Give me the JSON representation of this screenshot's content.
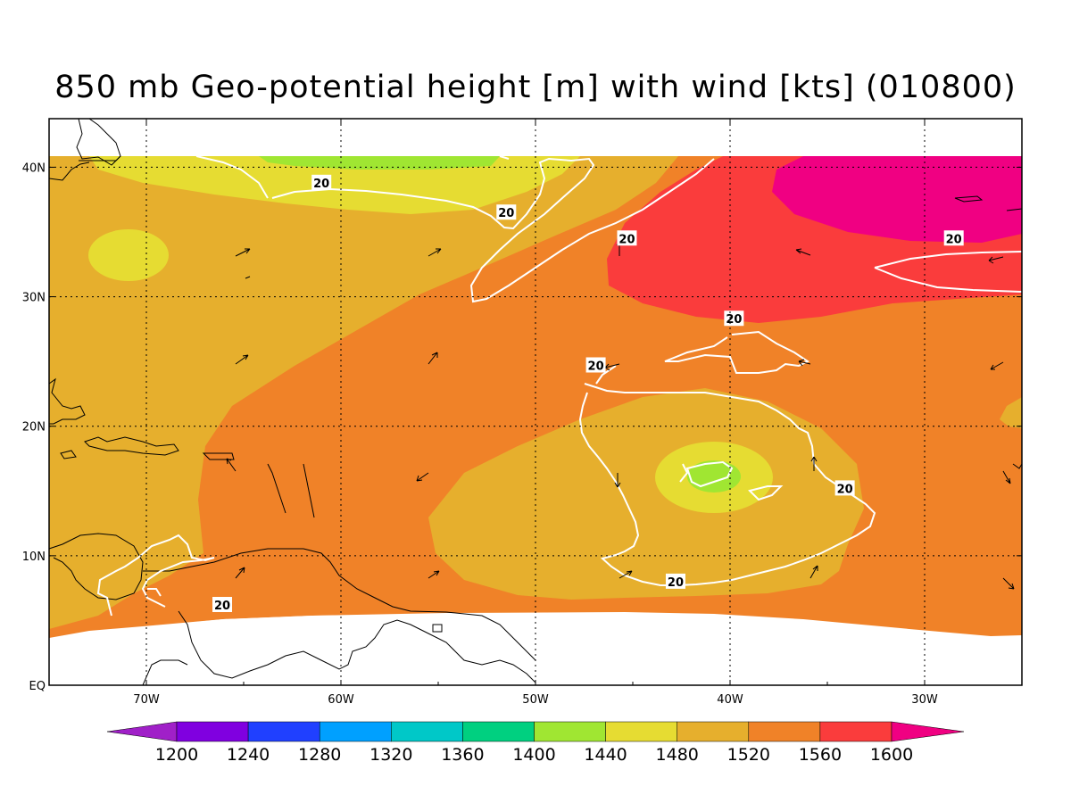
{
  "title": "850 mb Geo-potential height [m] with wind [kts] (010800)",
  "colors": {
    "c1200": "#a020c8",
    "c1240": "#8000e0",
    "c1280": "#2040ff",
    "c1320": "#00a0ff",
    "c1360": "#00c8c8",
    "c1400": "#00d080",
    "c1440": "#a0e632",
    "c1480": "#e6dc32",
    "c1520": "#e6af2d",
    "c1560": "#f08228",
    "c1600": "#fa3c3c",
    "c1640": "#f00082",
    "contour": "#ffffff",
    "coast": "#000000"
  },
  "chart_data": {
    "type": "map",
    "projection": "cylindrical",
    "lon_range": [
      -75,
      -25
    ],
    "lat_range": [
      0,
      45
    ],
    "xticks": [
      {
        "lon": -70,
        "label": "70W"
      },
      {
        "lon": -60,
        "label": "60W"
      },
      {
        "lon": -50,
        "label": "50W"
      },
      {
        "lon": -40,
        "label": "40W"
      },
      {
        "lon": -30,
        "label": "30W"
      }
    ],
    "yticks": [
      {
        "lat": 0,
        "label": "EQ"
      },
      {
        "lat": 10,
        "label": "10N"
      },
      {
        "lat": 20,
        "label": "20N"
      },
      {
        "lat": 30,
        "label": "30N"
      },
      {
        "lat": 40,
        "label": "40N"
      }
    ],
    "grid": true,
    "colorbar": {
      "levels": [
        1200,
        1240,
        1280,
        1320,
        1360,
        1400,
        1440,
        1480,
        1520,
        1560,
        1600
      ],
      "labels": [
        "1200",
        "1240",
        "1280",
        "1320",
        "1360",
        "1400",
        "1440",
        "1480",
        "1520",
        "1560",
        "1600"
      ],
      "extends": "both",
      "placement": "bottom"
    },
    "wind_contour_labels": [
      {
        "lon": -61,
        "lat": 38.8,
        "text": "20"
      },
      {
        "lon": -51.5,
        "lat": 36.5,
        "text": "20"
      },
      {
        "lon": -45.3,
        "lat": 34.5,
        "text": "20"
      },
      {
        "lon": -28.5,
        "lat": 34.5,
        "text": "20"
      },
      {
        "lon": -39.8,
        "lat": 28.3,
        "text": "20"
      },
      {
        "lon": -46.9,
        "lat": 24.7,
        "text": "20"
      },
      {
        "lon": -34.1,
        "lat": 15.2,
        "text": "20"
      },
      {
        "lon": -42.8,
        "lat": 8.0,
        "text": "20"
      },
      {
        "lon": -66.1,
        "lat": 6.2,
        "text": "20"
      }
    ]
  }
}
